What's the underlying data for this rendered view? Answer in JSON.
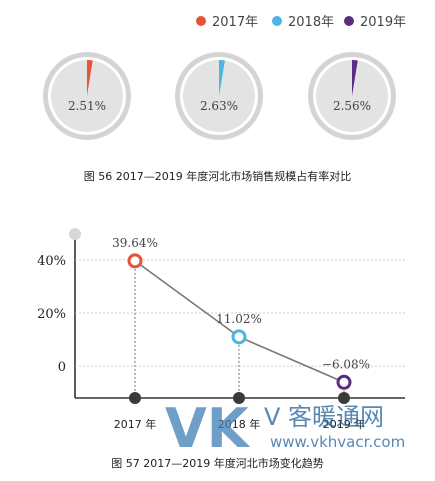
{
  "colors": {
    "y2017": "#e5543a",
    "y2018": "#4db4e3",
    "y2019": "#5a2d82",
    "pie_bg": "#e3e3e3",
    "pie_ring": "#d4d4d4",
    "line": "#777777",
    "axis": "#333333",
    "grid": "#bdbdbd"
  },
  "chart_data": [
    {
      "type": "pie",
      "title": "图 56   2017—2019 年度河北市场销售规模占有率对比",
      "legend": [
        "2017年",
        "2018年",
        "2019年"
      ],
      "legend_position": "top-right",
      "series": [
        {
          "name": "2017年",
          "value": 2.51,
          "label": "2.51%"
        },
        {
          "name": "2018年",
          "value": 2.63,
          "label": "2.63%"
        },
        {
          "name": "2019年",
          "value": 2.56,
          "label": "2.56%"
        }
      ]
    },
    {
      "type": "line",
      "title": "图 57   2017—2019 年度河北市场变化趋势",
      "categories": [
        "2017 年",
        "2018 年",
        "2019 年"
      ],
      "values": [
        39.64,
        11.02,
        -6.08
      ],
      "data_labels": [
        "39.64%",
        "11.02%",
        "−6.08%"
      ],
      "y_ticks": [
        {
          "value": 40,
          "label": "40%"
        },
        {
          "value": 20,
          "label": "20%"
        },
        {
          "value": 0,
          "label": "0"
        }
      ],
      "ylim": [
        -12,
        49
      ],
      "grid": true
    }
  ],
  "watermark": {
    "brand": "VK",
    "text": "V 客暖通网",
    "url": "www.vkhvacr.com"
  }
}
